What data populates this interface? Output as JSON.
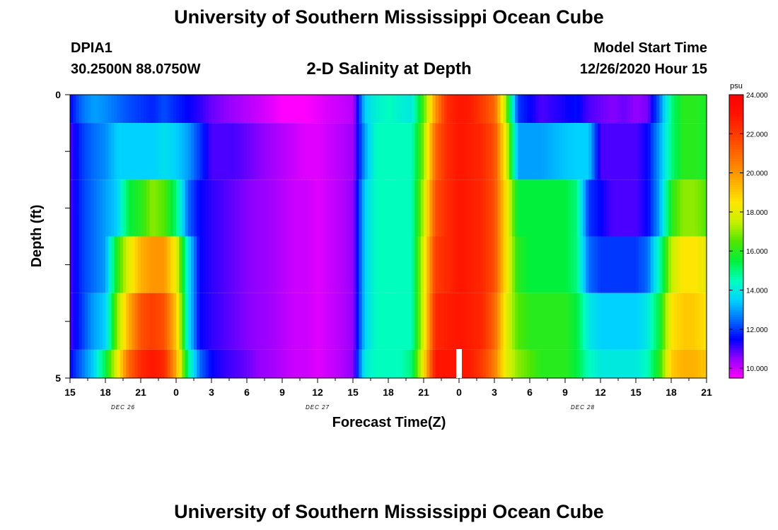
{
  "header": {
    "title": "University of Southern Mississippi Ocean Cube",
    "station_id": "DPIA1",
    "coordinates": "30.2500N 88.0750W",
    "model_label": "Model Start Time",
    "model_time": "12/26/2020 Hour 15"
  },
  "footer": {
    "title": "University of Southern Mississippi Ocean Cube"
  },
  "chart_data": {
    "type": "heatmap",
    "title": "2-D Salinity at Depth",
    "xlabel": "Forecast Time(Z)",
    "ylabel": "Depth (ft)",
    "x_tick_labels": [
      "15",
      "18",
      "21",
      "0",
      "3",
      "6",
      "9",
      "12",
      "15",
      "18",
      "21",
      "0",
      "3",
      "6",
      "9",
      "12",
      "15",
      "18",
      "21"
    ],
    "x_range_hours": [
      0,
      54
    ],
    "day_labels": [
      {
        "label": "DEC 26",
        "hour": 4.5
      },
      {
        "label": "DEC 27",
        "hour": 21
      },
      {
        "label": "DEC 28",
        "hour": 43.5
      }
    ],
    "y_tick_labels": [
      "0",
      "5"
    ],
    "y_range": [
      0,
      5
    ],
    "colorbar": {
      "unit": "psu",
      "min": 9.5,
      "max": 24.0,
      "tick_labels": [
        "24.000",
        "22.000",
        "20.000",
        "18.000",
        "16.000",
        "14.000",
        "12.000",
        "10.000"
      ],
      "tick_values": [
        24,
        22,
        20,
        18,
        16,
        14,
        12,
        10
      ]
    },
    "now_marker_hour": 33,
    "depth_rows": [
      0.5,
      1.5,
      2.5,
      3.5,
      4.5
    ],
    "salinity_anchors": {
      "hours": [
        0,
        1,
        2,
        3,
        4,
        5,
        6,
        7,
        8,
        9,
        10,
        11,
        12,
        13,
        14,
        15,
        16,
        17,
        18,
        19,
        20,
        21,
        22,
        23,
        24,
        25,
        26,
        27,
        28,
        29,
        30,
        31,
        32,
        33,
        34,
        35,
        36,
        37,
        38,
        39,
        40,
        41,
        42,
        43,
        44,
        45,
        46,
        47,
        48,
        49,
        50,
        51,
        52,
        53,
        54
      ],
      "rows": [
        [
          11.5,
          12.5,
          13.0,
          12.8,
          12.5,
          12.2,
          12.0,
          11.8,
          12.2,
          11.8,
          11.5,
          11.2,
          10.8,
          10.6,
          10.4,
          10.2,
          10.0,
          9.8,
          9.5,
          9.5,
          9.5,
          9.7,
          9.9,
          10.0,
          10.2,
          13.5,
          14.2,
          14.5,
          14.2,
          14.0,
          16.5,
          20.0,
          22.5,
          23.0,
          22.8,
          22.0,
          21.0,
          17.0,
          12.0,
          11.5,
          11.0,
          11.2,
          11.4,
          11.6,
          11.0,
          10.8,
          10.6,
          10.8,
          10.5,
          10.7,
          12.5,
          15.0,
          16.0,
          16.0,
          15.8
        ],
        [
          11.0,
          12.0,
          12.5,
          12.8,
          13.5,
          13.5,
          13.5,
          13.5,
          13.8,
          13.5,
          13.0,
          12.0,
          11.0,
          11.0,
          11.0,
          10.8,
          10.6,
          10.4,
          10.2,
          10.0,
          9.8,
          9.8,
          10.0,
          10.2,
          10.4,
          13.0,
          14.5,
          14.5,
          14.5,
          14.5,
          17.0,
          21.0,
          22.5,
          23.0,
          22.8,
          22.5,
          21.5,
          18.0,
          13.0,
          13.0,
          13.0,
          13.2,
          13.4,
          13.5,
          13.5,
          11.0,
          11.0,
          11.0,
          11.0,
          11.5,
          13.0,
          15.0,
          16.0,
          16.0,
          15.8
        ],
        [
          11.0,
          12.0,
          12.5,
          13.0,
          13.5,
          15.5,
          16.0,
          17.0,
          16.5,
          15.0,
          12.5,
          11.5,
          11.2,
          11.0,
          10.8,
          10.6,
          10.5,
          10.4,
          10.2,
          10.0,
          10.0,
          9.8,
          10.0,
          10.2,
          10.5,
          13.5,
          14.5,
          14.5,
          14.5,
          14.5,
          17.5,
          21.5,
          22.5,
          23.0,
          22.8,
          22.5,
          21.5,
          18.5,
          15.5,
          15.5,
          15.5,
          15.5,
          15.5,
          15.0,
          12.0,
          11.5,
          11.0,
          11.0,
          11.0,
          11.5,
          13.0,
          16.0,
          17.0,
          17.0,
          16.5
        ],
        [
          11.0,
          12.0,
          12.5,
          13.0,
          16.0,
          18.0,
          19.5,
          20.0,
          20.0,
          18.0,
          14.0,
          11.5,
          11.2,
          11.0,
          10.8,
          10.6,
          10.5,
          10.4,
          10.2,
          10.0,
          10.0,
          9.8,
          10.0,
          10.2,
          10.5,
          13.5,
          14.5,
          14.5,
          14.5,
          14.5,
          18.0,
          22.0,
          22.5,
          23.0,
          22.8,
          22.5,
          21.5,
          18.5,
          16.0,
          15.5,
          15.5,
          15.5,
          15.5,
          15.0,
          12.5,
          12.0,
          12.0,
          12.0,
          12.0,
          12.5,
          14.5,
          17.5,
          18.5,
          18.5,
          18.0
        ],
        [
          11.0,
          12.0,
          13.0,
          13.5,
          17.0,
          19.5,
          21.5,
          22.0,
          21.5,
          19.0,
          14.0,
          11.5,
          11.2,
          11.0,
          10.8,
          10.6,
          10.5,
          10.4,
          10.2,
          10.0,
          10.0,
          9.8,
          10.0,
          10.2,
          10.5,
          13.5,
          14.5,
          14.5,
          14.5,
          14.5,
          18.0,
          22.5,
          22.8,
          23.0,
          22.8,
          22.5,
          21.0,
          18.0,
          16.5,
          16.0,
          16.0,
          16.0,
          16.0,
          15.5,
          14.0,
          13.5,
          13.5,
          13.5,
          13.5,
          14.0,
          15.5,
          18.5,
          19.0,
          19.0,
          18.5
        ],
        [
          11.5,
          12.5,
          13.5,
          15.5,
          18.0,
          21.0,
          22.5,
          23.0,
          22.5,
          19.5,
          15.0,
          12.5,
          11.5,
          11.2,
          11.0,
          10.8,
          10.5,
          10.4,
          10.2,
          10.0,
          10.0,
          9.8,
          10.0,
          10.2,
          10.6,
          14.0,
          14.5,
          14.5,
          14.5,
          15.0,
          18.5,
          23.0,
          23.0,
          23.0,
          22.8,
          22.0,
          20.5,
          18.0,
          17.0,
          16.5,
          16.0,
          16.0,
          16.0,
          15.5,
          14.5,
          14.0,
          14.0,
          14.0,
          14.0,
          14.5,
          16.0,
          19.0,
          19.5,
          19.5,
          19.0
        ]
      ],
      "row_depths": [
        0.25,
        0.75,
        1.75,
        2.75,
        3.75,
        4.75
      ]
    }
  }
}
